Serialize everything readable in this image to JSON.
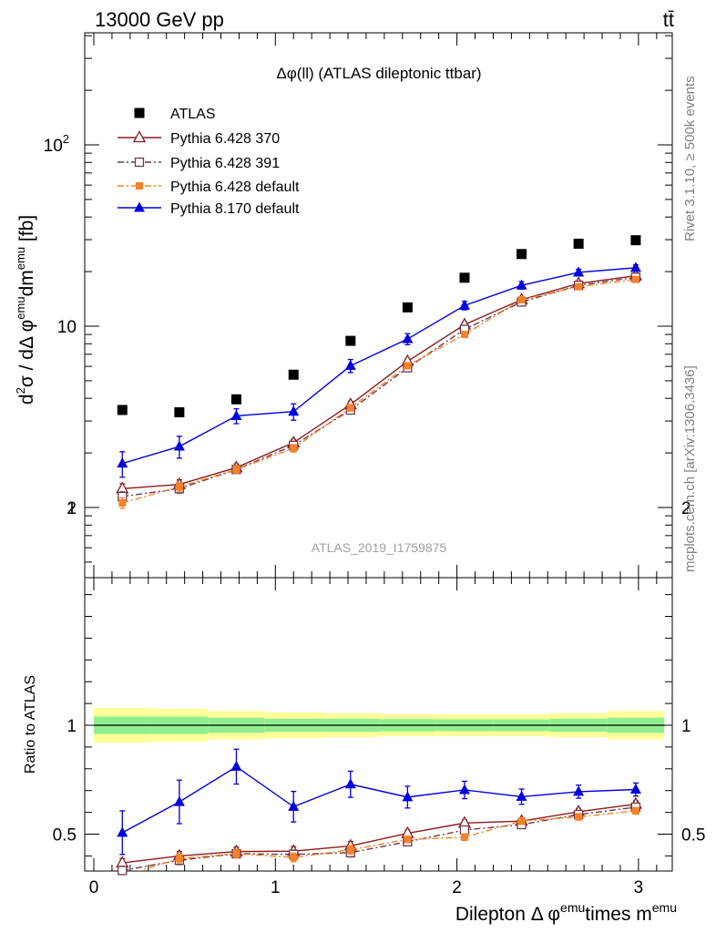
{
  "header": {
    "energy_label": "13000 GeV pp",
    "process_label": "tt̄"
  },
  "side_labels": {
    "rivet": "Rivet 3.1.10, ≥ 500k events",
    "mcplots": "mcplots.cern.ch [arXiv:1306.3436]"
  },
  "analysis_id": "ATLAS_2019_I1759875",
  "colors": {
    "data": "#000000",
    "py6_370": "#8b1a1a",
    "py6_391": "#6e3a4a",
    "py6_default": "#f5822a",
    "py8_default": "#0000dd",
    "band_inner": "#90ee90",
    "band_outer": "#ffff99"
  },
  "chart_data": [
    {
      "type": "scatter",
      "panel": "main",
      "title": "Δφ(ll) (ATLAS dileptonic ttbar)",
      "ylabel": "d²σ / dΔ φemu dmemu [fb]",
      "yscale": "log",
      "ylim": [
        0.4,
        400
      ],
      "xlim": [
        -0.1,
        3.2
      ],
      "y_ticks": [
        "1",
        "10",
        "10²"
      ],
      "x": [
        0.157,
        0.471,
        0.785,
        1.1,
        1.414,
        1.728,
        2.042,
        2.356,
        2.67,
        2.985
      ],
      "series": [
        {
          "name": "ATLAS",
          "marker": "filled-square",
          "values": [
            3.45,
            3.35,
            3.95,
            5.4,
            8.3,
            12.7,
            18.5,
            25.0,
            28.5,
            29.8
          ],
          "err": [
            0,
            0,
            0,
            0,
            0,
            0,
            0,
            0,
            0,
            0
          ]
        },
        {
          "name": "Pythia 6.428 370",
          "marker": "open-triangle",
          "line": "solid",
          "values": [
            1.27,
            1.34,
            1.66,
            2.28,
            3.7,
            6.4,
            10.2,
            14.0,
            17.2,
            19.0
          ],
          "err": [
            0.08,
            0.08,
            0.08,
            0.1,
            0.15,
            0.2,
            0.3,
            0.4,
            0.5,
            0.6
          ]
        },
        {
          "name": "Pythia 6.428 391",
          "marker": "open-square",
          "line": "dashdot",
          "values": [
            1.15,
            1.27,
            1.62,
            2.2,
            3.45,
            5.9,
            9.6,
            13.6,
            16.8,
            18.6
          ],
          "err": [
            0.07,
            0.07,
            0.08,
            0.1,
            0.15,
            0.2,
            0.3,
            0.4,
            0.5,
            0.6
          ]
        },
        {
          "name": "Pythia 6.428 default",
          "marker": "filled-square-small",
          "line": "dashdot",
          "values": [
            1.06,
            1.3,
            1.62,
            2.12,
            3.55,
            6.05,
            9.0,
            14.0,
            16.5,
            18.1
          ],
          "err": [
            0.07,
            0.07,
            0.08,
            0.1,
            0.15,
            0.2,
            0.3,
            0.4,
            0.5,
            0.6
          ]
        },
        {
          "name": "Pythia 8.170 default",
          "marker": "filled-triangle",
          "line": "solid",
          "values": [
            1.75,
            2.17,
            3.2,
            3.38,
            6.05,
            8.5,
            13.0,
            16.8,
            19.8,
            21.0
          ],
          "err": [
            0.28,
            0.3,
            0.3,
            0.35,
            0.5,
            0.6,
            0.7,
            0.8,
            0.8,
            0.8
          ]
        }
      ]
    },
    {
      "type": "line",
      "panel": "ratio",
      "ylabel": "Ratio to ATLAS",
      "xlabel": "Dilepton Δ φemu times memu",
      "ylim": [
        0.34,
        2.3
      ],
      "xlim": [
        -0.1,
        3.2
      ],
      "x_ticks": [
        "0",
        "1",
        "2",
        "3"
      ],
      "y_ticks": [
        "0.5",
        "1",
        "2"
      ],
      "x": [
        0.157,
        0.471,
        0.785,
        1.1,
        1.414,
        1.728,
        2.042,
        2.356,
        2.67,
        2.985
      ],
      "band": {
        "edges": [
          0,
          0.314,
          0.628,
          0.942,
          1.257,
          1.571,
          1.885,
          2.199,
          2.513,
          2.827,
          3.142
        ],
        "inner": [
          0.04,
          0.04,
          0.035,
          0.03,
          0.03,
          0.028,
          0.027,
          0.027,
          0.03,
          0.035
        ],
        "outer": [
          0.08,
          0.075,
          0.065,
          0.06,
          0.055,
          0.05,
          0.05,
          0.05,
          0.055,
          0.065
        ]
      },
      "series": [
        {
          "name": "Pythia 6.428 370",
          "values": [
            0.368,
            0.4,
            0.42,
            0.422,
            0.446,
            0.504,
            0.551,
            0.56,
            0.603,
            0.638
          ],
          "err": [
            0.02,
            0.02,
            0.02,
            0.02,
            0.02,
            0.015,
            0.015,
            0.015,
            0.015,
            0.015
          ]
        },
        {
          "name": "Pythia 6.428 391",
          "values": [
            0.333,
            0.38,
            0.41,
            0.407,
            0.415,
            0.465,
            0.519,
            0.544,
            0.59,
            0.624
          ],
          "err": [
            0.02,
            0.02,
            0.02,
            0.02,
            0.02,
            0.015,
            0.015,
            0.015,
            0.015,
            0.015
          ]
        },
        {
          "name": "Pythia 6.428 default",
          "values": [
            0.307,
            0.388,
            0.41,
            0.393,
            0.428,
            0.476,
            0.486,
            0.56,
            0.579,
            0.607
          ],
          "err": [
            0.02,
            0.02,
            0.02,
            0.02,
            0.02,
            0.015,
            0.015,
            0.015,
            0.015,
            0.015
          ]
        },
        {
          "name": "Pythia 8.170 default",
          "values": [
            0.507,
            0.648,
            0.81,
            0.626,
            0.729,
            0.67,
            0.703,
            0.672,
            0.695,
            0.705
          ],
          "err": [
            0.1,
            0.1,
            0.08,
            0.07,
            0.06,
            0.05,
            0.04,
            0.035,
            0.03,
            0.03
          ]
        }
      ]
    }
  ]
}
